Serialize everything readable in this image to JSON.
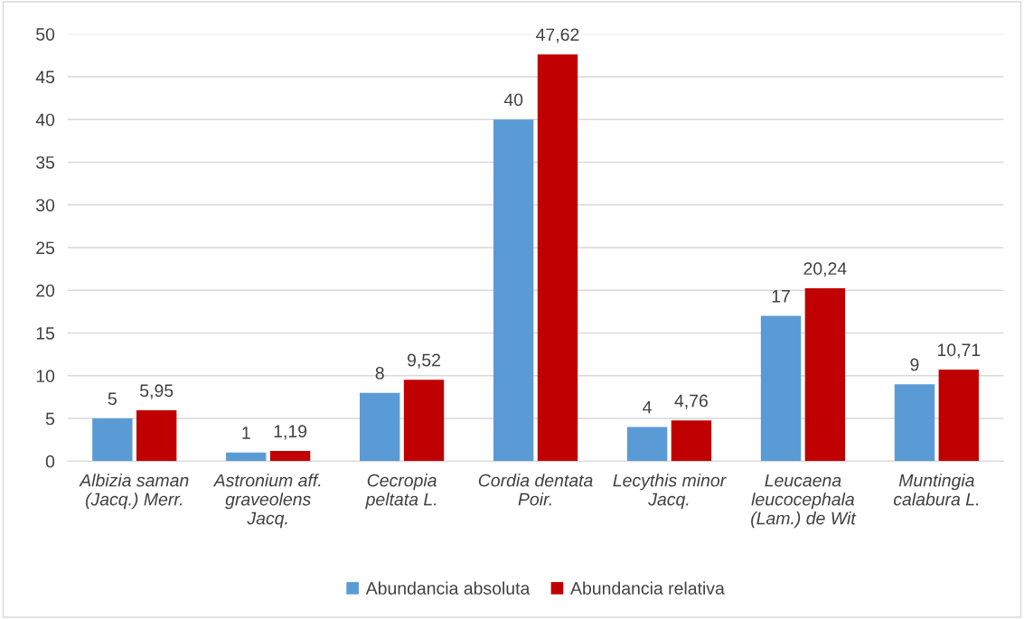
{
  "chart_data": {
    "type": "bar",
    "categories": [
      "Albizia saman\n(Jacq.) Merr.",
      "Astronium aff.\ngraveolens\nJacq.",
      "Cecropia\npeltata L.",
      "Cordia dentata\nPoir.",
      "Lecythis minor\nJacq.",
      "Leucaena\nleucocephala\n(Lam.) de Wit",
      "Muntingia\ncalabura L."
    ],
    "series": [
      {
        "name": "Abundancia absoluta",
        "color": "#5b9bd5",
        "values": [
          5,
          1,
          8,
          40,
          4,
          17,
          9
        ],
        "value_labels": [
          "5",
          "1",
          "8",
          "40",
          "4",
          "17",
          "9"
        ]
      },
      {
        "name": "Abundancia relativa",
        "color": "#c00000",
        "values": [
          5.95,
          1.19,
          9.52,
          47.62,
          4.76,
          20.24,
          10.71
        ],
        "value_labels": [
          "5,95",
          "1,19",
          "9,52",
          "47,62",
          "4,76",
          "20,24",
          "10,71"
        ]
      }
    ],
    "ylim": [
      0,
      50
    ],
    "yticks": [
      0,
      5,
      10,
      15,
      20,
      25,
      30,
      35,
      40,
      45,
      50
    ],
    "grid": "y",
    "legend": "bottom"
  }
}
